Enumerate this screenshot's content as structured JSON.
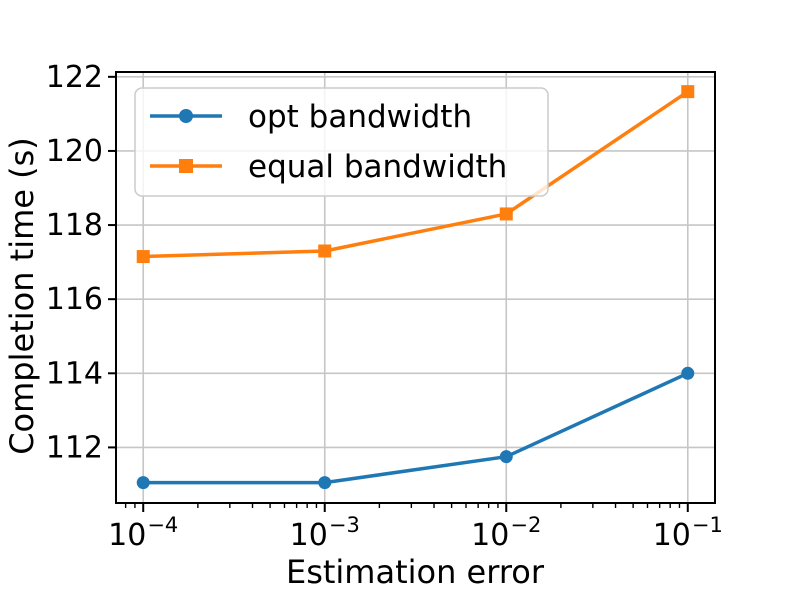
{
  "figure": {
    "background": "#ffffff"
  },
  "chart_data": {
    "type": "line",
    "title": "",
    "xlabel": "Estimation error",
    "ylabel": "Completion time (s)",
    "x_scale": "log",
    "x": [
      0.0001,
      0.001,
      0.01,
      0.1
    ],
    "x_tick_base": "10",
    "x_tick_exponents": [
      "−4",
      "−3",
      "−2",
      "−1"
    ],
    "y_ticks": [
      112,
      114,
      116,
      118,
      120,
      122
    ],
    "ylim": [
      110.5,
      122.13
    ],
    "xlim_log10": [
      -4.15,
      -0.85
    ],
    "grid": true,
    "legend_position": "upper left",
    "series": [
      {
        "name": "opt bandwidth",
        "color": "#1f77b4",
        "marker": "circle",
        "values": [
          111.05,
          111.05,
          111.75,
          114.0
        ]
      },
      {
        "name": "equal bandwidth",
        "color": "#ff7f0e",
        "marker": "square",
        "values": [
          117.15,
          117.3,
          118.3,
          121.6
        ]
      }
    ],
    "style": {
      "grid_color": "#c6c6c6",
      "spine_color": "#000000",
      "tick_color": "#000000",
      "text_color": "#000000",
      "legend_border": "#cccccc",
      "legend_background": "rgba(255,255,255,0.8)"
    }
  }
}
